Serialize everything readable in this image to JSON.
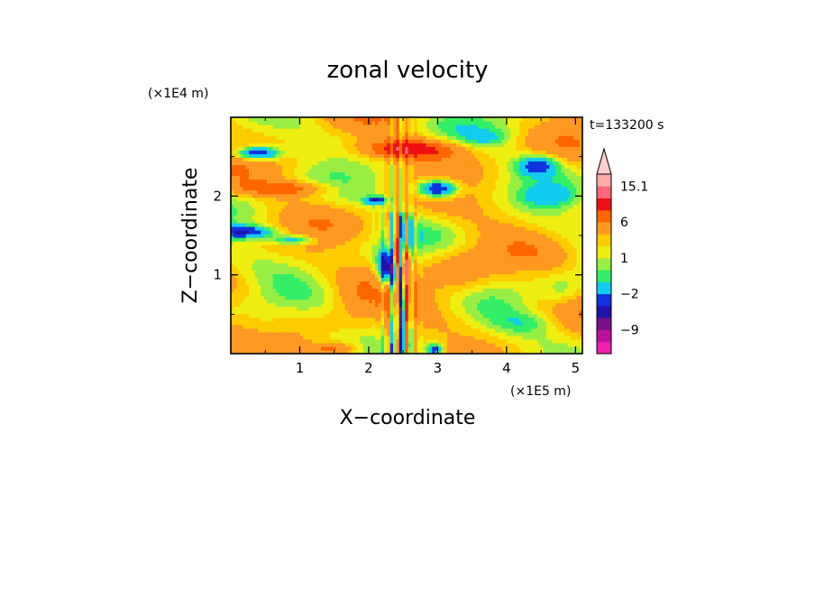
{
  "chart_data": {
    "type": "heatmap",
    "title": "zonal velocity",
    "xlabel": "X−coordinate",
    "ylabel": "Z−coordinate",
    "x_unit": "(×1E5 m)",
    "y_unit": "(×1E4 m)",
    "time_label": "t=133200 s",
    "xlim": [
      0,
      5.1
    ],
    "ylim": [
      0,
      3.0
    ],
    "x_ticks": [
      {
        "value": 1,
        "label": "1"
      },
      {
        "value": 2,
        "label": "2"
      },
      {
        "value": 3,
        "label": "3"
      },
      {
        "value": 4,
        "label": "4"
      },
      {
        "value": 5,
        "label": "5"
      }
    ],
    "y_ticks": [
      {
        "value": 1,
        "label": "1"
      },
      {
        "value": 2,
        "label": "2"
      }
    ],
    "colorbar": {
      "levels": [
        -15,
        -12,
        -9,
        -6,
        -4,
        -2,
        -1,
        0,
        1,
        2,
        4,
        6,
        9,
        12,
        15.1
      ],
      "colors": [
        "#ee22aa",
        "#bb1199",
        "#771188",
        "#2211aa",
        "#1133dd",
        "#11ccee",
        "#33ee66",
        "#99ee44",
        "#eeee11",
        "#ffcc00",
        "#ff9922",
        "#ff6600",
        "#ee1111",
        "#ff6677",
        "#ffaaaa",
        "#ffcccc"
      ],
      "labels": [
        {
          "value": 15.1,
          "text": "15.1"
        },
        {
          "value": 6,
          "text": "6"
        },
        {
          "value": 1,
          "text": "1"
        },
        {
          "value": -2,
          "text": "−2"
        },
        {
          "value": -9,
          "text": "−9"
        }
      ],
      "extend_max": true
    },
    "features": [
      {
        "x": 0.4,
        "z": 2.55,
        "value": -8,
        "sx": 0.3,
        "sz": 0.08
      },
      {
        "x": 0.2,
        "z": 1.55,
        "value": -7,
        "sx": 0.45,
        "sz": 0.08
      },
      {
        "x": 0.9,
        "z": 1.45,
        "value": -5,
        "sx": 0.3,
        "sz": 0.06
      },
      {
        "x": 3.0,
        "z": 2.1,
        "value": -9,
        "sx": 0.28,
        "sz": 0.11
      },
      {
        "x": 4.45,
        "z": 2.4,
        "value": -6,
        "sx": 0.28,
        "sz": 0.12
      },
      {
        "x": 4.6,
        "z": 2.0,
        "value": -3,
        "sx": 0.4,
        "sz": 0.14
      },
      {
        "x": 3.7,
        "z": 2.75,
        "value": -2,
        "sx": 0.35,
        "sz": 0.1
      },
      {
        "x": 2.3,
        "z": 1.1,
        "value": -11,
        "sx": 0.16,
        "sz": 0.22
      },
      {
        "x": 2.1,
        "z": 1.95,
        "value": -7,
        "sx": 0.15,
        "sz": 0.05
      },
      {
        "x": 2.45,
        "z": 0.55,
        "value": -9,
        "sx": 0.06,
        "sz": 0.4
      },
      {
        "x": 2.95,
        "z": 0.05,
        "value": -7,
        "sx": 0.12,
        "sz": 0.08
      },
      {
        "x": 2.4,
        "z": 1.25,
        "value": 8,
        "sx": 0.08,
        "sz": 0.22
      },
      {
        "x": 2.55,
        "z": 1.1,
        "value": 7,
        "sx": 0.06,
        "sz": 0.2
      },
      {
        "x": 2.6,
        "z": 2.6,
        "value": 6,
        "sx": 0.7,
        "sz": 0.12
      },
      {
        "x": 0.8,
        "z": 2.1,
        "value": 4,
        "sx": 0.7,
        "sz": 0.09
      },
      {
        "x": 1.5,
        "z": 0.05,
        "value": 5,
        "sx": 0.4,
        "sz": 0.1
      },
      {
        "x": 3.3,
        "z": 1.0,
        "value": 2,
        "sx": 0.5,
        "sz": 0.4
      },
      {
        "x": 4.3,
        "z": 0.4,
        "value": -2,
        "sx": 0.5,
        "sz": 0.15
      },
      {
        "x": 0.5,
        "z": 0.3,
        "value": -1.5,
        "sx": 0.4,
        "sz": 0.18
      },
      {
        "x": 1.8,
        "z": 0.7,
        "value": 1.5,
        "sx": 0.4,
        "sz": 0.3
      },
      {
        "x": 4.8,
        "z": 0.8,
        "value": -1.5,
        "sx": 0.25,
        "sz": 0.2
      }
    ]
  }
}
